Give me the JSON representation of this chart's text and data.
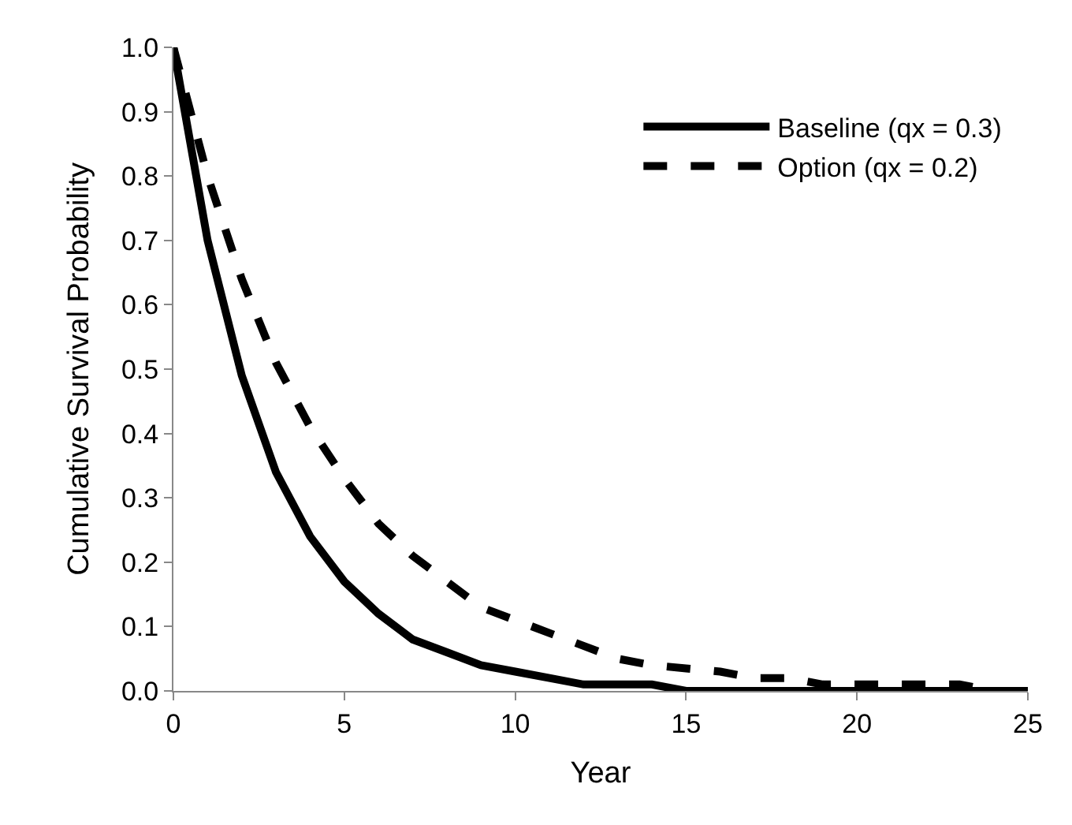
{
  "chart_data": {
    "type": "line",
    "xlabel": "Year",
    "ylabel": "Cumulative Survival Probability",
    "x": [
      0,
      1,
      2,
      3,
      4,
      5,
      6,
      7,
      8,
      9,
      10,
      11,
      12,
      13,
      14,
      15,
      16,
      17,
      18,
      19,
      20,
      21,
      22,
      23,
      24,
      25
    ],
    "series": [
      {
        "name": "Baseline (qx = 0.3)",
        "color": "#000000",
        "line_style": "solid",
        "values": [
          1.0,
          0.7,
          0.49,
          0.34,
          0.24,
          0.17,
          0.12,
          0.08,
          0.06,
          0.04,
          0.03,
          0.02,
          0.01,
          0.01,
          0.01,
          0.0,
          0.0,
          0.0,
          0.0,
          0.0,
          0.0,
          0.0,
          0.0,
          0.0,
          0.0,
          0.0
        ]
      },
      {
        "name": "Option (qx = 0.2)",
        "color": "#000000",
        "line_style": "dashed",
        "values": [
          1.0,
          0.8,
          0.64,
          0.51,
          0.41,
          0.33,
          0.26,
          0.21,
          0.17,
          0.13,
          0.11,
          0.09,
          0.07,
          0.05,
          0.04,
          0.035,
          0.03,
          0.02,
          0.02,
          0.01,
          0.01,
          0.01,
          0.01,
          0.01,
          0.0,
          0.0
        ]
      }
    ],
    "xlim": [
      0,
      25
    ],
    "xticks": [
      0,
      5,
      10,
      15,
      20,
      25
    ],
    "ylim": [
      0,
      1
    ],
    "yticks": [
      {
        "value": 0,
        "label": "0.0"
      },
      0.1,
      0.2,
      0.3,
      0.4,
      0.5,
      0.6,
      0.7,
      0.8,
      0.9,
      {
        "value": 1,
        "label": "1.0"
      }
    ],
    "grid": false,
    "legend": "top right",
    "marker": "none"
  }
}
